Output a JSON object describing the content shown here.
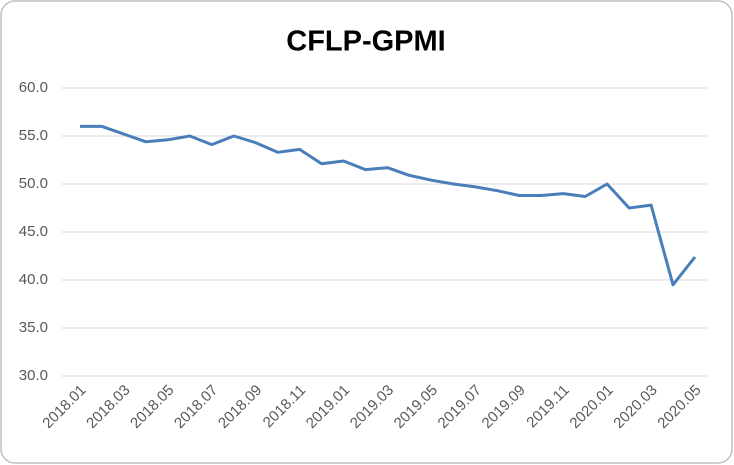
{
  "chart_data": {
    "type": "line",
    "title": "CFLP-GPMI",
    "categories": [
      "2018.01",
      null,
      "2018.03",
      null,
      "2018.05",
      null,
      "2018.07",
      null,
      "2018.09",
      null,
      "2018.11",
      null,
      "2019.01",
      null,
      "2019.03",
      null,
      "2019.05",
      null,
      "2019.07",
      null,
      "2019.09",
      null,
      "2019.11",
      null,
      "2020.01",
      null,
      "2020.03",
      null,
      "2020.05"
    ],
    "series": [
      {
        "name": "CFLP-GPMI",
        "color": "#4a7ebb",
        "values": [
          56.0,
          56.0,
          55.2,
          54.4,
          54.6,
          55.0,
          54.1,
          55.0,
          54.3,
          53.3,
          53.6,
          52.1,
          52.4,
          51.5,
          51.7,
          50.9,
          50.4,
          50.0,
          49.7,
          49.3,
          48.8,
          48.8,
          49.0,
          48.7,
          50.0,
          47.5,
          47.8,
          39.5,
          42.4
        ]
      }
    ],
    "ylim": [
      30,
      60
    ],
    "yticks": [
      {
        "value": 30,
        "label": "30.0"
      },
      {
        "value": 35,
        "label": "35.0"
      },
      {
        "value": 40,
        "label": "40.0"
      },
      {
        "value": 45,
        "label": "45.0"
      },
      {
        "value": 50,
        "label": "50.0"
      },
      {
        "value": 55,
        "label": "55.0"
      },
      {
        "value": 60,
        "label": "60.0"
      }
    ],
    "grid": true
  }
}
